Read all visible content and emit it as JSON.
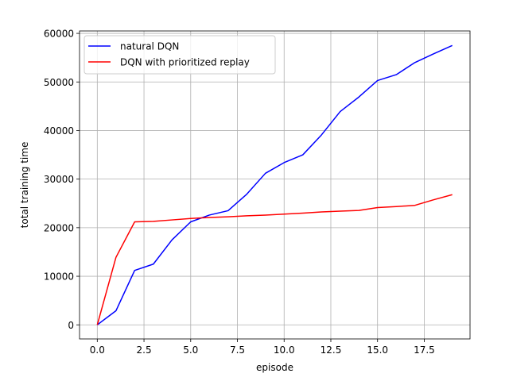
{
  "chart_data": {
    "type": "line",
    "xlabel": "episode",
    "ylabel": "total training time",
    "xlim": [
      -0.95,
      19.95
    ],
    "ylim": [
      -2900,
      60500
    ],
    "xticks": [
      0.0,
      2.5,
      5.0,
      7.5,
      10.0,
      12.5,
      15.0,
      17.5
    ],
    "xtick_labels": [
      "0.0",
      "2.5",
      "5.0",
      "7.5",
      "10.0",
      "12.5",
      "15.0",
      "17.5"
    ],
    "yticks": [
      0,
      10000,
      20000,
      30000,
      40000,
      50000,
      60000
    ],
    "ytick_labels": [
      "0",
      "10000",
      "20000",
      "30000",
      "40000",
      "50000",
      "60000"
    ],
    "grid": true,
    "legend_position": "top-left",
    "x": [
      0,
      1,
      2,
      3,
      4,
      5,
      6,
      7,
      8,
      9,
      10,
      11,
      12,
      13,
      14,
      15,
      16,
      17,
      18,
      19
    ],
    "series": [
      {
        "name": "natural DQN",
        "color": "#0000ff",
        "values": [
          0,
          2900,
          11200,
          12500,
          17500,
          21200,
          22600,
          23500,
          26900,
          31200,
          33400,
          35000,
          39100,
          43900,
          46900,
          50300,
          51500,
          54000,
          55800,
          57500
        ]
      },
      {
        "name": "DQN with prioritized replay",
        "color": "#ff0000",
        "values": [
          0,
          13900,
          21200,
          21300,
          21600,
          21900,
          22100,
          22250,
          22450,
          22600,
          22800,
          23000,
          23250,
          23400,
          23550,
          24150,
          24350,
          24600,
          25750,
          26800
        ]
      }
    ]
  }
}
